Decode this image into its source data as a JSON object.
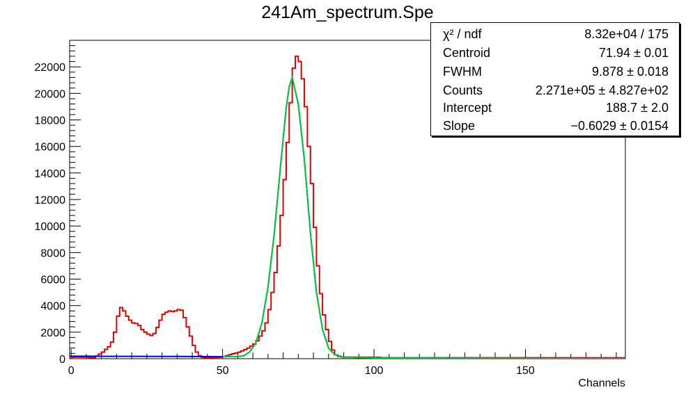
{
  "chart_data": {
    "type": "histogram",
    "title": "241Am_spectrum.Spe",
    "xlabel": "Channels",
    "ylabel": "",
    "xlim": [
      -0.5,
      183
    ],
    "ylim": [
      0,
      24000
    ],
    "x_ticks": [
      0,
      50,
      100,
      150
    ],
    "y_ticks": [
      0,
      2000,
      4000,
      6000,
      8000,
      10000,
      12000,
      14000,
      16000,
      18000,
      20000,
      22000
    ],
    "bin_width": 1,
    "bin_start": 0,
    "series": [
      {
        "style": "step",
        "color": "#e00000",
        "values": [
          110,
          110,
          110,
          110,
          110,
          110,
          80,
          70,
          200,
          350,
          500,
          700,
          900,
          1250,
          2000,
          3200,
          3850,
          3600,
          3200,
          2900,
          2700,
          2650,
          2500,
          2200,
          2000,
          1850,
          1750,
          1900,
          2350,
          2900,
          3350,
          3500,
          3600,
          3550,
          3600,
          3700,
          3650,
          3100,
          2400,
          1700,
          1000,
          500,
          220,
          100,
          60,
          50,
          70,
          90,
          100,
          120,
          160,
          220,
          300,
          370,
          420,
          490,
          580,
          680,
          800,
          950,
          1100,
          1350,
          1700,
          2100,
          2700,
          3700,
          5000,
          6500,
          8500,
          10800,
          13500,
          16300,
          19300,
          21900,
          22800,
          22400,
          21100,
          19000,
          16000,
          13200,
          9900,
          7000,
          4900,
          3300,
          2200,
          1300,
          650,
          280,
          170,
          140,
          120,
          120,
          120,
          120,
          120,
          120,
          110,
          110,
          110,
          110,
          100,
          110,
          80,
          80,
          80,
          70,
          70,
          70,
          70,
          70,
          70,
          70,
          70,
          70,
          70,
          70,
          70,
          70,
          70,
          70,
          70,
          70,
          70,
          70,
          70,
          70,
          70,
          70,
          70,
          70,
          70,
          70,
          70,
          70,
          70,
          70,
          70,
          70,
          70,
          70,
          70,
          70,
          70,
          70,
          70,
          70,
          70,
          70,
          70,
          70,
          70,
          70,
          70,
          70,
          70,
          70,
          70,
          70,
          70,
          70,
          70,
          70,
          70,
          70,
          70,
          70,
          70,
          70,
          70,
          70,
          70,
          70,
          70,
          70,
          70,
          70,
          70,
          70,
          70,
          70,
          70,
          70,
          70,
          70,
          70,
          70
        ]
      },
      {
        "style": "line",
        "color": "#0000dd",
        "x": [
          -0.5,
          4,
          10,
          20,
          30,
          40,
          50,
          55,
          57,
          59,
          61,
          63,
          65,
          67,
          69,
          71,
          72,
          73,
          75,
          77,
          79,
          81,
          83,
          85,
          87,
          90,
          100,
          120,
          150,
          183
        ],
        "values": [
          190,
          190,
          180,
          175,
          170,
          165,
          150,
          160,
          220,
          520,
          1200,
          2700,
          5400,
          9300,
          14200,
          18900,
          20500,
          21200,
          19200,
          15000,
          9500,
          5000,
          2200,
          800,
          300,
          120,
          60,
          40,
          20,
          10
        ]
      },
      {
        "style": "line",
        "color": "#00cc33",
        "x": [
          50,
          55,
          57,
          59,
          61,
          63,
          65,
          67,
          69,
          71,
          72,
          73,
          75,
          77,
          79,
          81,
          83,
          85,
          87,
          90,
          100,
          120,
          150,
          183
        ],
        "values": [
          150,
          160,
          220,
          520,
          1200,
          2700,
          5400,
          9300,
          14200,
          18900,
          20500,
          21200,
          19200,
          15000,
          9500,
          5000,
          2200,
          800,
          300,
          120,
          60,
          40,
          20,
          10
        ]
      }
    ]
  },
  "stats": [
    {
      "key": "χ² / ndf",
      "value": "8.32e+04 / 175"
    },
    {
      "key": "Centroid",
      "value": "71.94 ± 0.01"
    },
    {
      "key": "FWHM",
      "value": "9.878 ± 0.018"
    },
    {
      "key": "Counts",
      "value": "2.271e+05 ± 4.827e+02"
    },
    {
      "key": "Intercept",
      "value": "188.7 ± 2.0"
    },
    {
      "key": "Slope",
      "value": "−0.6029 ± 0.0154"
    }
  ]
}
